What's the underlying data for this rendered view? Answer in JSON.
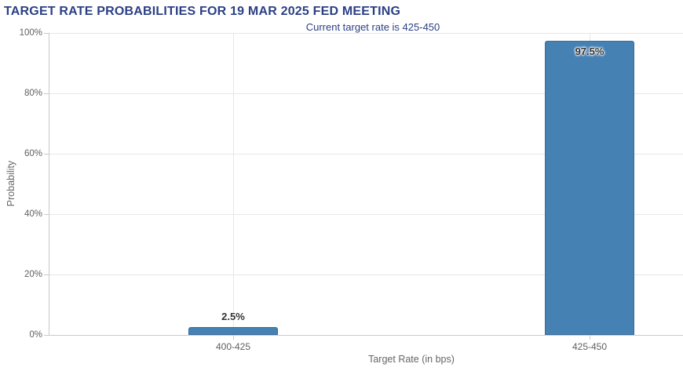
{
  "chart_data": {
    "type": "bar",
    "title": "TARGET RATE PROBABILITIES FOR 19 MAR 2025 FED MEETING",
    "subtitle": "Current target rate is 425-450",
    "categories": [
      "400-425",
      "425-450"
    ],
    "values": [
      2.5,
      97.5
    ],
    "value_labels": [
      "2.5%",
      "97.5%"
    ],
    "xlabel": "Target Rate (in bps)",
    "ylabel": "Probability",
    "ylim": [
      0,
      100
    ],
    "yticks": [
      0,
      20,
      40,
      60,
      80,
      100
    ],
    "ytick_labels": [
      "0%",
      "20%",
      "40%",
      "60%",
      "80%",
      "100%"
    ],
    "grid": true,
    "legend": "none",
    "colors": {
      "title": "#2b3f85",
      "subtitle": "#2b3f85",
      "bar_fill": "#4681b4",
      "bar_border": "#3a6b9d",
      "axis_line": "#c9c9c9",
      "grid_line": "#e7e7e7",
      "tick_label": "#606060",
      "axis_title": "#666666",
      "data_label": "#333333"
    }
  }
}
